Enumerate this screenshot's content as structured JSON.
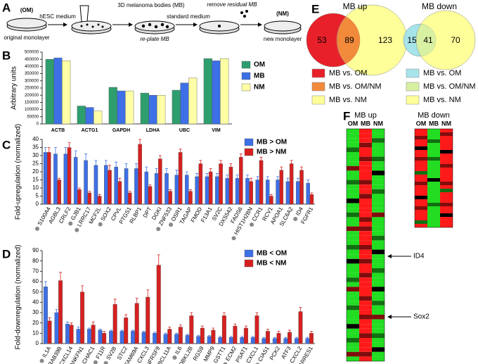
{
  "panel_labels": [
    "A",
    "B",
    "C",
    "D",
    "E",
    "F"
  ],
  "diagram": {
    "om_label": "(OM)",
    "om_caption": "original monolayer",
    "step1": "hESC medium",
    "mb_label": "3D melanoma bodies (MB)",
    "replate": "re-plate MB",
    "step2": "standard medium",
    "remove": "remove residual MB",
    "nm_label": "(NM)",
    "nm_caption": "new monolayer"
  },
  "chart_data": [
    {
      "type": "bar",
      "ylabel": "Arbitrary units",
      "legend": "right",
      "categories": [
        "ACTB",
        "ACTG1",
        "GAPDH",
        "LDHA",
        "UBC",
        "VIM"
      ],
      "series": [
        {
          "name": "OM",
          "color": "#2e9e6e",
          "values": [
            450000,
            125000,
            255000,
            215000,
            235000,
            455000
          ]
        },
        {
          "name": "MB",
          "color": "#3d6fe6",
          "values": [
            460000,
            115000,
            230000,
            200000,
            285000,
            440000
          ]
        },
        {
          "name": "NM",
          "color": "#ffffa6",
          "values": [
            440000,
            90000,
            230000,
            200000,
            320000,
            455000
          ]
        }
      ],
      "ylim": [
        0,
        500000
      ],
      "yticks": [
        0,
        50000,
        100000,
        150000,
        200000,
        250000,
        300000,
        350000,
        400000,
        450000,
        500000
      ]
    },
    {
      "type": "bar",
      "ylabel": "Fold-upregulation (normalized)",
      "legend": "upper right",
      "categories": [
        "S100A4",
        "AGBL3",
        "CRLF2",
        "GJB1",
        "LRRC17",
        "MCF2L",
        "SOX2",
        "CPVL",
        "PTGS1",
        "RLBP1",
        "DPT",
        "DGKI",
        "ZNF533",
        "OSR1",
        "TAGAP",
        "FMOD",
        "F13A1",
        "SV2C",
        "DXS542",
        "FADS6",
        "HIST1H2BN",
        "CCR1",
        "RCV1",
        "APOA1",
        "SLC6A2",
        "ID4",
        "FGFR1"
      ],
      "marked": [
        true,
        false,
        false,
        true,
        true,
        false,
        true,
        false,
        false,
        false,
        false,
        false,
        true,
        true,
        false,
        false,
        false,
        false,
        false,
        false,
        true,
        true,
        false,
        false,
        false,
        true,
        false
      ],
      "series": [
        {
          "name": "MB > OM",
          "color": "#3d6fe6",
          "values": [
            32,
            31,
            31,
            29,
            27,
            24,
            24,
            23,
            22,
            22,
            20,
            19,
            19,
            18,
            18,
            17,
            17,
            17,
            16,
            16,
            16,
            15,
            15,
            15,
            14,
            14,
            13
          ],
          "errors": [
            3,
            4,
            4,
            4,
            4,
            3,
            3,
            3,
            3,
            3,
            3,
            3,
            3,
            3,
            2,
            2,
            2,
            2,
            2,
            2,
            2,
            2,
            2,
            2,
            2,
            2,
            2
          ]
        },
        {
          "name": "MB > NM",
          "color": "#d62020",
          "values": [
            32,
            15,
            35,
            9,
            7,
            5,
            21,
            14,
            7,
            37,
            11,
            28,
            8,
            32,
            8,
            25,
            20,
            25,
            23,
            29,
            14,
            27,
            5,
            21,
            25,
            21,
            6
          ],
          "errors": [
            3,
            1,
            3,
            1,
            1,
            1,
            3,
            2,
            1,
            3,
            1,
            2,
            1,
            2,
            1,
            2,
            2,
            2,
            2,
            2,
            2,
            2,
            1,
            2,
            2,
            2,
            1
          ]
        }
      ],
      "ylim": [
        0,
        40
      ],
      "yticks": [
        0,
        5,
        10,
        15,
        20,
        25,
        30,
        35,
        40
      ]
    },
    {
      "type": "bar",
      "ylabel": "Fold-downregulation (normalized)",
      "legend": "upper right",
      "categories": [
        "IL1A",
        "RAB39B",
        "CXCL14",
        "ANKFN1",
        "CHAC1",
        "F11R",
        "SV2B",
        "STC2",
        "FAM69A",
        "CXCL3",
        "TNFRSF9",
        "BCL11A",
        "IL6",
        "MOBKL2B",
        "RGS9",
        "MMP9",
        "GSTT1",
        "ECM2",
        "PSAT1",
        "CXCL1",
        "CIAS1",
        "PCK2",
        "ATF3",
        "CXCL2",
        "RARRES1"
      ],
      "marked": [
        true,
        true,
        true,
        false,
        true,
        true,
        true,
        false,
        true,
        false,
        false,
        false,
        true,
        true,
        false,
        false,
        false,
        true,
        false,
        true,
        true,
        false,
        false,
        false,
        false
      ],
      "series": [
        {
          "name": "MB < OM",
          "color": "#3d6fe6",
          "values": [
            55,
            30,
            19,
            14,
            14,
            13,
            12,
            12,
            12,
            11,
            10,
            9,
            9,
            8,
            7,
            7,
            6,
            6,
            6,
            6,
            5,
            5,
            5,
            5,
            5
          ],
          "errors": [
            5,
            3,
            2,
            2,
            1,
            1,
            1,
            1,
            1,
            1,
            1,
            1,
            1,
            1,
            1,
            1,
            1,
            1,
            1,
            1,
            1,
            1,
            1,
            1,
            1
          ]
        },
        {
          "name": "MB < NM",
          "color": "#d62020",
          "values": [
            22,
            61,
            18,
            50,
            18,
            10,
            38,
            25,
            39,
            45,
            76,
            14,
            16,
            27,
            15,
            13,
            27,
            17,
            15,
            27,
            12,
            10,
            11,
            31,
            10
          ],
          "errors": [
            3,
            8,
            2,
            6,
            3,
            2,
            5,
            3,
            5,
            7,
            10,
            2,
            2,
            3,
            2,
            2,
            3,
            2,
            2,
            3,
            2,
            2,
            2,
            4,
            2
          ]
        }
      ],
      "ylim": [
        0,
        90
      ],
      "yticks": [
        0,
        10,
        20,
        30,
        40,
        50,
        60,
        70,
        80,
        90
      ]
    }
  ],
  "venn": [
    {
      "title": "MB up",
      "counts": [
        "53",
        "89",
        "123"
      ],
      "legend": [
        "MB vs. OM",
        "MB vs. OM/NM",
        "MB vs. NM"
      ],
      "colors": [
        "#e8202a",
        "#f28a3c",
        "#ffff9a"
      ]
    },
    {
      "title": "MB down",
      "counts": [
        "15",
        "41",
        "70"
      ],
      "legend": [
        "MB vs. OM",
        "MB vs. OM/NM",
        "MB vs. NM"
      ],
      "colors": [
        "#a6e4ea",
        "#d8f0a2",
        "#ffff9a"
      ]
    }
  ],
  "heatmap": {
    "colors": {
      "positive": "#ff1a1a",
      "zero": "#000000",
      "negative": "#22dd22"
    },
    "panels": [
      {
        "title": "MB up",
        "columns": [
          "OM",
          "MB",
          "NM"
        ],
        "values": [
          [
            -1,
            1,
            -1
          ],
          [
            -1,
            1,
            -1
          ],
          [
            -1,
            1,
            -0.5
          ],
          [
            -1,
            0.5,
            -1
          ],
          [
            -0.5,
            1,
            -1
          ],
          [
            -1,
            1,
            -1
          ],
          [
            -1,
            0.5,
            -0.5
          ],
          [
            -1,
            1,
            -1
          ],
          [
            0.5,
            1,
            -1
          ],
          [
            -1,
            1,
            0
          ],
          [
            -1,
            1,
            -1
          ],
          [
            -0.5,
            0.5,
            -1
          ],
          [
            -1,
            1,
            -1
          ],
          [
            -1,
            1,
            -0.5
          ],
          [
            -1,
            0.5,
            -1
          ],
          [
            0,
            1,
            -1
          ],
          [
            -1,
            1,
            -1
          ],
          [
            -1,
            1,
            -1
          ],
          [
            -0.5,
            1,
            0.5
          ],
          [
            -1,
            0.5,
            -1
          ],
          [
            -1,
            1,
            -1
          ],
          [
            0.5,
            0.5,
            -1
          ],
          [
            -1,
            1,
            -1
          ],
          [
            -1,
            1,
            -0.5
          ],
          [
            -1,
            1,
            -1
          ],
          [
            -0.5,
            0.5,
            -1
          ],
          [
            -1,
            1,
            0
          ],
          [
            -1,
            1,
            -1
          ],
          [
            0,
            0.5,
            -1
          ],
          [
            -1,
            1,
            -1
          ],
          [
            -1,
            1,
            -0.5
          ],
          [
            -1,
            0.5,
            -1
          ],
          [
            -0.5,
            1,
            -1
          ],
          [
            -1,
            1,
            -1
          ],
          [
            0.5,
            1,
            0
          ],
          [
            -1,
            1,
            -1
          ],
          [
            -1,
            0.5,
            -1
          ],
          [
            -1,
            1,
            -0.5
          ],
          [
            -0.5,
            1,
            -1
          ],
          [
            -1,
            1,
            -1
          ],
          [
            -1,
            0.5,
            0.5
          ],
          [
            -1,
            1,
            -1
          ],
          [
            0,
            1,
            -1
          ],
          [
            -1,
            1,
            -1
          ],
          [
            -1,
            0.5,
            -0.5
          ],
          [
            -0.5,
            1,
            -1
          ],
          [
            -1,
            1,
            -1
          ],
          [
            -1,
            1,
            0
          ],
          [
            0.5,
            0.5,
            -1
          ],
          [
            -1,
            1,
            -1
          ]
        ]
      },
      {
        "title": "MB down",
        "columns": [
          "OM",
          "MB",
          "NM"
        ],
        "values": [
          [
            1,
            -1,
            1
          ],
          [
            1,
            -1,
            0.5
          ],
          [
            0.5,
            -1,
            1
          ],
          [
            1,
            -0.5,
            1
          ],
          [
            1,
            -1,
            1
          ],
          [
            0,
            -1,
            1
          ],
          [
            1,
            -1,
            0
          ],
          [
            1,
            -1,
            1
          ],
          [
            0.5,
            -0.5,
            1
          ],
          [
            1,
            -1,
            1
          ],
          [
            1,
            -1,
            0.5
          ],
          [
            1,
            -1,
            1
          ],
          [
            -0.5,
            -1,
            1
          ],
          [
            1,
            -1,
            1
          ],
          [
            1,
            0,
            1
          ],
          [
            0.5,
            -1,
            0.5
          ],
          [
            1,
            -1,
            1
          ],
          [
            1,
            -1,
            -0.5
          ],
          [
            1,
            -1,
            1
          ],
          [
            0,
            -1,
            1
          ],
          [
            1,
            -1,
            1
          ],
          [
            1,
            -0.5,
            0.5
          ],
          [
            0.5,
            -1,
            1
          ],
          [
            1,
            -1,
            1
          ],
          [
            1,
            -1,
            0
          ],
          [
            1,
            -1,
            1
          ],
          [
            -0.5,
            -1,
            1
          ],
          [
            1,
            -1,
            1
          ]
        ]
      }
    ],
    "annotations": [
      "ID4",
      "Sox2"
    ]
  }
}
